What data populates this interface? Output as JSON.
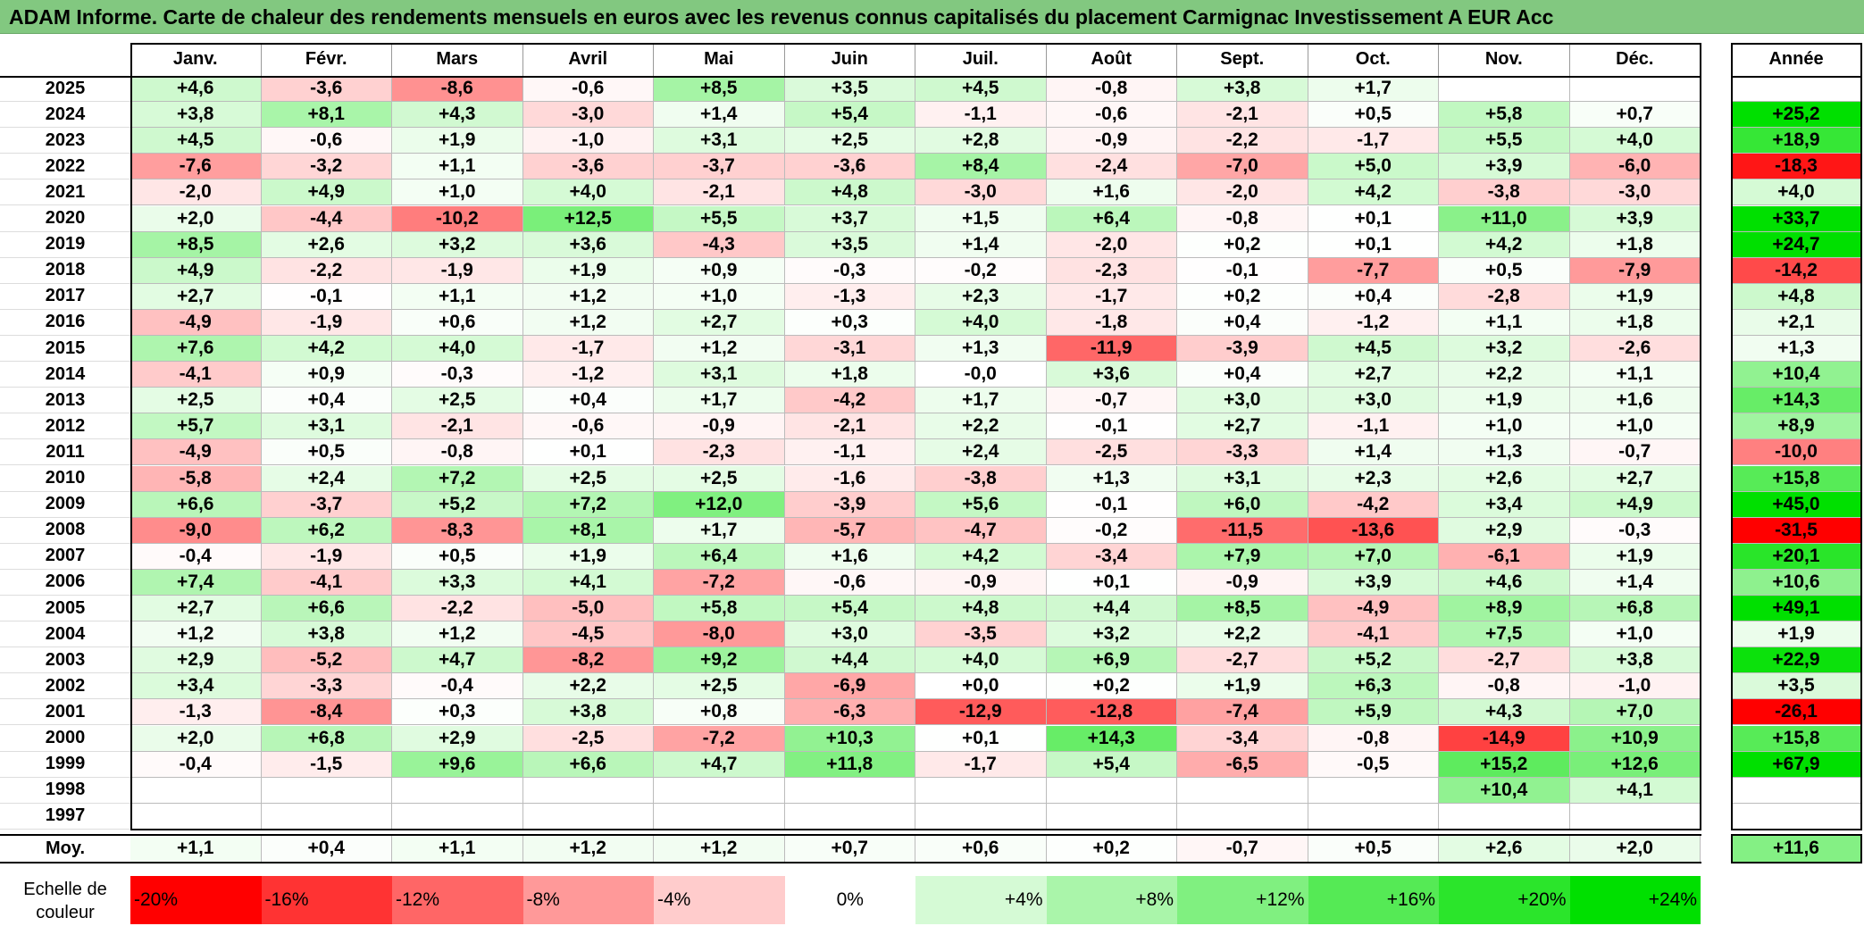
{
  "title": "ADAM Informe. Carte de chaleur des rendements mensuels en euros avec les revenus connus capitalisés du placement Carmignac Investissement A EUR Acc",
  "chart_data": {
    "type": "heatmap",
    "months": [
      "Janv.",
      "Févr.",
      "Mars",
      "Avril",
      "Mai",
      "Juin",
      "Juil.",
      "Août",
      "Sept.",
      "Oct.",
      "Nov.",
      "Déc."
    ],
    "year_header": "Année",
    "rows": [
      {
        "year": "2025",
        "months": [
          "+4,6",
          "-3,6",
          "-8,6",
          "-0,6",
          "+8,5",
          "+3,5",
          "+4,5",
          "-0,8",
          "+3,8",
          "+1,7",
          "",
          ""
        ],
        "annual": ""
      },
      {
        "year": "2024",
        "months": [
          "+3,8",
          "+8,1",
          "+4,3",
          "-3,0",
          "+1,4",
          "+5,4",
          "-1,1",
          "-0,6",
          "-2,1",
          "+0,5",
          "+5,8",
          "+0,7"
        ],
        "annual": "+25,2"
      },
      {
        "year": "2023",
        "months": [
          "+4,5",
          "-0,6",
          "+1,9",
          "-1,0",
          "+3,1",
          "+2,5",
          "+2,8",
          "-0,9",
          "-2,2",
          "-1,7",
          "+5,5",
          "+4,0"
        ],
        "annual": "+18,9"
      },
      {
        "year": "2022",
        "months": [
          "-7,6",
          "-3,2",
          "+1,1",
          "-3,6",
          "-3,7",
          "-3,6",
          "+8,4",
          "-2,4",
          "-7,0",
          "+5,0",
          "+3,9",
          "-6,0"
        ],
        "annual": "-18,3"
      },
      {
        "year": "2021",
        "months": [
          "-2,0",
          "+4,9",
          "+1,0",
          "+4,0",
          "-2,1",
          "+4,8",
          "-3,0",
          "+1,6",
          "-2,0",
          "+4,2",
          "-3,8",
          "-3,0"
        ],
        "annual": "+4,0"
      },
      {
        "year": "2020",
        "months": [
          "+2,0",
          "-4,4",
          "-10,2",
          "+12,5",
          "+5,5",
          "+3,7",
          "+1,5",
          "+6,4",
          "-0,8",
          "+0,1",
          "+11,0",
          "+3,9"
        ],
        "annual": "+33,7"
      },
      {
        "year": "2019",
        "months": [
          "+8,5",
          "+2,6",
          "+3,2",
          "+3,6",
          "-4,3",
          "+3,5",
          "+1,4",
          "-2,0",
          "+0,2",
          "+0,1",
          "+4,2",
          "+1,8"
        ],
        "annual": "+24,7"
      },
      {
        "year": "2018",
        "months": [
          "+4,9",
          "-2,2",
          "-1,9",
          "+1,9",
          "+0,9",
          "-0,3",
          "-0,2",
          "-2,3",
          "-0,1",
          "-7,7",
          "+0,5",
          "-7,9"
        ],
        "annual": "-14,2"
      },
      {
        "year": "2017",
        "months": [
          "+2,7",
          "-0,1",
          "+1,1",
          "+1,2",
          "+1,0",
          "-1,3",
          "+2,3",
          "-1,7",
          "+0,2",
          "+0,4",
          "-2,8",
          "+1,9"
        ],
        "annual": "+4,8"
      },
      {
        "year": "2016",
        "months": [
          "-4,9",
          "-1,9",
          "+0,6",
          "+1,2",
          "+2,7",
          "+0,3",
          "+4,0",
          "-1,8",
          "+0,4",
          "-1,2",
          "+1,1",
          "+1,8"
        ],
        "annual": "+2,1"
      },
      {
        "year": "2015",
        "months": [
          "+7,6",
          "+4,2",
          "+4,0",
          "-1,7",
          "+1,2",
          "-3,1",
          "+1,3",
          "-11,9",
          "-3,9",
          "+4,5",
          "+3,2",
          "-2,6"
        ],
        "annual": "+1,3"
      },
      {
        "year": "2014",
        "months": [
          "-4,1",
          "+0,9",
          "-0,3",
          "-1,2",
          "+3,1",
          "+1,8",
          "-0,0",
          "+3,6",
          "+0,4",
          "+2,7",
          "+2,2",
          "+1,1"
        ],
        "annual": "+10,4"
      },
      {
        "year": "2013",
        "months": [
          "+2,5",
          "+0,4",
          "+2,5",
          "+0,4",
          "+1,7",
          "-4,2",
          "+1,7",
          "-0,7",
          "+3,0",
          "+3,0",
          "+1,9",
          "+1,6"
        ],
        "annual": "+14,3"
      },
      {
        "year": "2012",
        "months": [
          "+5,7",
          "+3,1",
          "-2,1",
          "-0,6",
          "-0,9",
          "-2,1",
          "+2,2",
          "-0,1",
          "+2,7",
          "-1,1",
          "+1,0",
          "+1,0"
        ],
        "annual": "+8,9"
      },
      {
        "year": "2011",
        "months": [
          "-4,9",
          "+0,5",
          "-0,8",
          "+0,1",
          "-2,3",
          "-1,1",
          "+2,4",
          "-2,5",
          "-3,3",
          "+1,4",
          "+1,3",
          "-0,7"
        ],
        "annual": "-10,0"
      },
      {
        "year": "2010",
        "months": [
          "-5,8",
          "+2,4",
          "+7,2",
          "+2,5",
          "+2,5",
          "-1,6",
          "-3,8",
          "+1,3",
          "+3,1",
          "+2,3",
          "+2,6",
          "+2,7"
        ],
        "annual": "+15,8"
      },
      {
        "year": "2009",
        "months": [
          "+6,6",
          "-3,7",
          "+5,2",
          "+7,2",
          "+12,0",
          "-3,9",
          "+5,6",
          "-0,1",
          "+6,0",
          "-4,2",
          "+3,4",
          "+4,9"
        ],
        "annual": "+45,0"
      },
      {
        "year": "2008",
        "months": [
          "-9,0",
          "+6,2",
          "-8,3",
          "+8,1",
          "+1,7",
          "-5,7",
          "-4,7",
          "-0,2",
          "-11,5",
          "-13,6",
          "+2,9",
          "-0,3"
        ],
        "annual": "-31,5"
      },
      {
        "year": "2007",
        "months": [
          "-0,4",
          "-1,9",
          "+0,5",
          "+1,9",
          "+6,4",
          "+1,6",
          "+4,2",
          "-3,4",
          "+7,9",
          "+7,0",
          "-6,1",
          "+1,9"
        ],
        "annual": "+20,1"
      },
      {
        "year": "2006",
        "months": [
          "+7,4",
          "-4,1",
          "+3,3",
          "+4,1",
          "-7,2",
          "-0,6",
          "-0,9",
          "+0,1",
          "-0,9",
          "+3,9",
          "+4,6",
          "+1,4"
        ],
        "annual": "+10,6"
      },
      {
        "year": "2005",
        "months": [
          "+2,7",
          "+6,6",
          "-2,2",
          "-5,0",
          "+5,8",
          "+5,4",
          "+4,8",
          "+4,4",
          "+8,5",
          "-4,9",
          "+8,9",
          "+6,8"
        ],
        "annual": "+49,1"
      },
      {
        "year": "2004",
        "months": [
          "+1,2",
          "+3,8",
          "+1,2",
          "-4,5",
          "-8,0",
          "+3,0",
          "-3,5",
          "+3,2",
          "+2,2",
          "-4,1",
          "+7,5",
          "+1,0"
        ],
        "annual": "+1,9"
      },
      {
        "year": "2003",
        "months": [
          "+2,9",
          "-5,2",
          "+4,7",
          "-8,2",
          "+9,2",
          "+4,4",
          "+4,0",
          "+6,9",
          "-2,7",
          "+5,2",
          "-2,7",
          "+3,8"
        ],
        "annual": "+22,9"
      },
      {
        "year": "2002",
        "months": [
          "+3,4",
          "-3,3",
          "-0,4",
          "+2,2",
          "+2,5",
          "-6,9",
          "+0,0",
          "+0,2",
          "+1,9",
          "+6,3",
          "-0,8",
          "-1,0"
        ],
        "annual": "+3,5"
      },
      {
        "year": "2001",
        "months": [
          "-1,3",
          "-8,4",
          "+0,3",
          "+3,8",
          "+0,8",
          "-6,3",
          "-12,9",
          "-12,8",
          "-7,4",
          "+5,9",
          "+4,3",
          "+7,0"
        ],
        "annual": "-26,1"
      },
      {
        "year": "2000",
        "months": [
          "+2,0",
          "+6,8",
          "+2,9",
          "-2,5",
          "-7,2",
          "+10,3",
          "+0,1",
          "+14,3",
          "-3,4",
          "-0,8",
          "-14,9",
          "+10,9"
        ],
        "annual": "+15,8"
      },
      {
        "year": "1999",
        "months": [
          "-0,4",
          "-1,5",
          "+9,6",
          "+6,6",
          "+4,7",
          "+11,8",
          "-1,7",
          "+5,4",
          "-6,5",
          "-0,5",
          "+15,2",
          "+12,6"
        ],
        "annual": "+67,9"
      },
      {
        "year": "1998",
        "months": [
          "",
          "",
          "",
          "",
          "",
          "",
          "",
          "",
          "",
          "",
          "+10,4",
          "+4,1"
        ],
        "annual": ""
      },
      {
        "year": "1997",
        "months": [
          "",
          "",
          "",
          "",
          "",
          "",
          "",
          "",
          "",
          "",
          "",
          ""
        ],
        "annual": ""
      }
    ],
    "average": {
      "label": "Moy.",
      "months": [
        "+1,1",
        "+0,4",
        "+1,1",
        "+1,2",
        "+1,2",
        "+0,7",
        "+0,6",
        "+0,2",
        "-0,7",
        "+0,5",
        "+2,6",
        "+2,0"
      ],
      "annual": "+11,6"
    },
    "scale": {
      "label_line1": "Echelle de",
      "label_line2": "couleur",
      "labels": [
        "-20%",
        "-16%",
        "-12%",
        "-8%",
        "-4%",
        "0%",
        "+4%",
        "+8%",
        "+12%",
        "+16%",
        "+20%",
        "+24%"
      ],
      "values": [
        -20,
        -16,
        -12,
        -8,
        -4,
        0,
        4,
        8,
        12,
        16,
        20,
        24
      ]
    },
    "colors": {
      "negative_max": "#ff0000",
      "positive_max": "#00e000",
      "neutral": "#ffffff",
      "title_bar": "#82c880"
    }
  }
}
